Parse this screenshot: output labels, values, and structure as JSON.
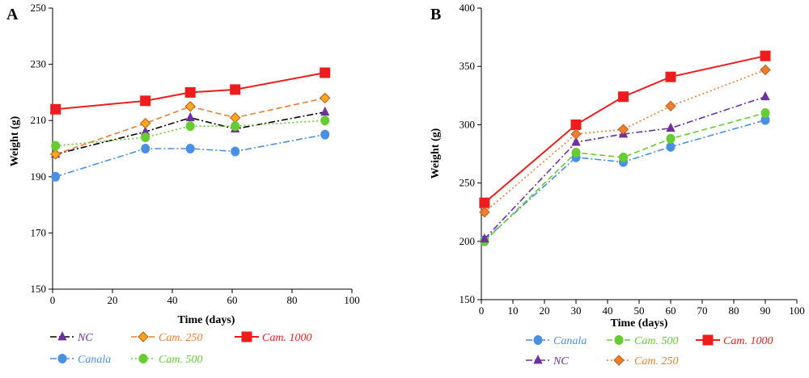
{
  "colors": {
    "NC": "#7030a0",
    "NC_line_A": "#000000",
    "Canala": "#4a90e2",
    "Cam250": "#ed7d31",
    "Cam500": "#66cc33",
    "Cam1000": "#ee1c1c",
    "Cam250_marker_fill": "#f5a623"
  },
  "chart_data": [
    {
      "panel_label": "A",
      "type": "line",
      "xlabel": "Time (days)",
      "ylabel": "Weight (g)",
      "xlim": [
        0,
        100
      ],
      "ylim": [
        150,
        250
      ],
      "xticks": [
        0,
        20,
        40,
        60,
        80,
        100
      ],
      "yticks": [
        150,
        170,
        190,
        210,
        230,
        250
      ],
      "x": [
        1,
        31,
        46,
        61,
        91
      ],
      "grid": false,
      "legend_position": "bottom",
      "series": [
        {
          "key": "NC",
          "name": "NC",
          "marker": "triangle",
          "dash": "dashdot",
          "values": [
            198,
            206,
            211,
            207,
            213
          ]
        },
        {
          "key": "Cam250",
          "name": "Cam. 250",
          "marker": "diamond",
          "dash": "dash",
          "values": [
            198,
            209,
            215,
            211,
            218
          ]
        },
        {
          "key": "Cam1000",
          "name": "Cam. 1000",
          "marker": "square",
          "dash": "solid",
          "values": [
            214,
            217,
            220,
            221,
            227
          ]
        },
        {
          "key": "Canala",
          "name": "Canala",
          "marker": "circle",
          "dash": "dashdot",
          "values": [
            190,
            200,
            200,
            199,
            205
          ]
        },
        {
          "key": "Cam500",
          "name": "Cam. 500",
          "marker": "circle",
          "dash": "dot",
          "values": [
            201,
            204,
            208,
            208,
            210
          ]
        }
      ]
    },
    {
      "panel_label": "B",
      "type": "line",
      "xlabel": "Time (days)",
      "ylabel": "Weight (g)",
      "xlim": [
        0,
        100
      ],
      "ylim": [
        150,
        400
      ],
      "xticks": [
        0,
        10,
        20,
        30,
        40,
        50,
        60,
        70,
        80,
        90,
        100
      ],
      "yticks": [
        150,
        200,
        250,
        300,
        350,
        400
      ],
      "x": [
        1,
        30,
        45,
        60,
        90
      ],
      "grid": false,
      "legend_position": "bottom",
      "series": [
        {
          "key": "Canala",
          "name": "Canala",
          "marker": "circle",
          "dash": "dashdot",
          "values": [
            201,
            272,
            268,
            281,
            304
          ]
        },
        {
          "key": "Cam500",
          "name": "Cam. 500",
          "marker": "circle",
          "dash": "dash",
          "values": [
            200,
            276,
            272,
            288,
            310
          ]
        },
        {
          "key": "Cam1000",
          "name": "Cam. 1000",
          "marker": "square",
          "dash": "solid",
          "values": [
            233,
            300,
            324,
            341,
            359
          ]
        },
        {
          "key": "NC",
          "name": "NC",
          "marker": "triangle",
          "dash": "dashdot",
          "values": [
            202,
            285,
            292,
            297,
            324
          ]
        },
        {
          "key": "Cam250",
          "name": "Cam. 250",
          "marker": "diamond",
          "dash": "dot",
          "values": [
            225,
            292,
            296,
            316,
            347
          ]
        }
      ]
    }
  ]
}
